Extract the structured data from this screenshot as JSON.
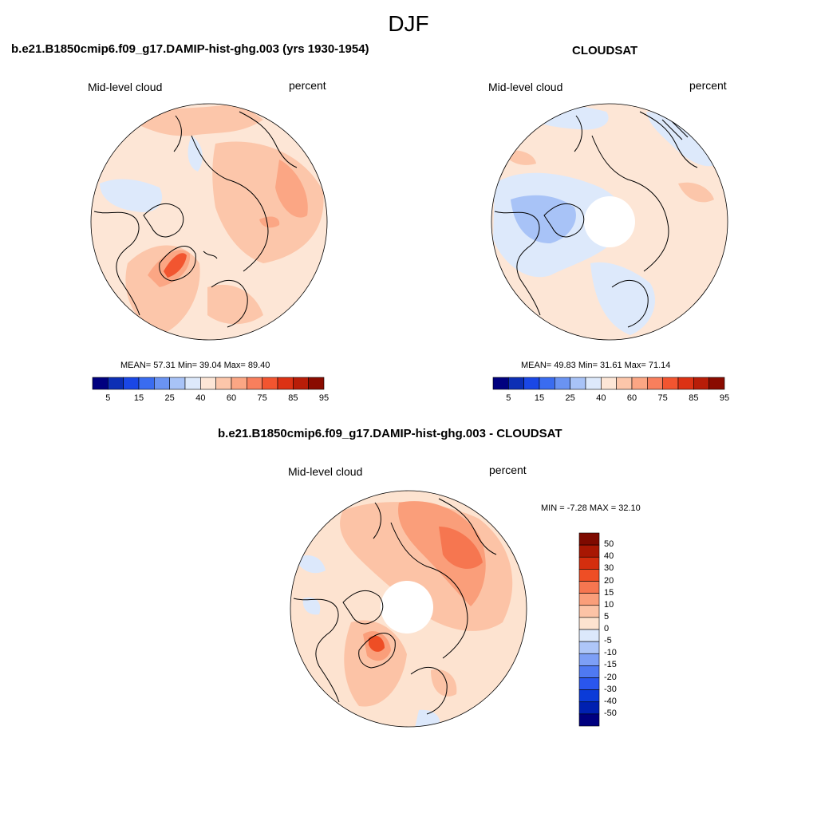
{
  "season": "DJF",
  "palette": {
    "main": [
      "#00007f",
      "#0d2fb5",
      "#1a47e6",
      "#3a6cf0",
      "#6a93f2",
      "#a8c3f7",
      "#dde9fb",
      "#fde6d6",
      "#fcc6aa",
      "#fba684",
      "#f87f5d",
      "#f25530",
      "#dc3214",
      "#b81d08",
      "#8a0b00"
    ],
    "diff": [
      "#00007f",
      "#0020b0",
      "#0b3bd8",
      "#2a56ee",
      "#4f79f2",
      "#7d9ff6",
      "#aec6f8",
      "#dce8fb",
      "#fde3d0",
      "#fcc3a6",
      "#fa9e7a",
      "#f67650",
      "#ee4e25",
      "#d42e0e",
      "#a81703",
      "#7e0a00"
    ],
    "coast": "#000000"
  },
  "panels": [
    {
      "title": "b.e21.B1850cmip6.f09_g17.DAMIP-hist-ghg.003 (yrs 1930-1954)",
      "left_label": "Mid-level cloud",
      "right_label": "percent",
      "stats": "MEAN=  57.31  Min=  39.04  Max=  89.40",
      "colorbar_labels": [
        "5",
        "15",
        "25",
        "40",
        "60",
        "75",
        "85",
        "95"
      ]
    },
    {
      "title": "CLOUDSAT",
      "left_label": "Mid-level cloud",
      "right_label": "percent",
      "stats": "MEAN=  49.83  Min=  31.61  Max=  71.14",
      "colorbar_labels": [
        "5",
        "15",
        "25",
        "40",
        "60",
        "75",
        "85",
        "95"
      ]
    },
    {
      "title": "b.e21.B1850cmip6.f09_g17.DAMIP-hist-ghg.003 - CLOUDSAT",
      "left_label": "Mid-level cloud",
      "right_label": "percent",
      "stats": "MIN =  -7.28 MAX =  32.10",
      "colorbar_labels": [
        "50",
        "40",
        "30",
        "20",
        "15",
        "10",
        "5",
        "0",
        "-5",
        "-10",
        "-15",
        "-20",
        "-30",
        "-40",
        "-50"
      ]
    }
  ]
}
